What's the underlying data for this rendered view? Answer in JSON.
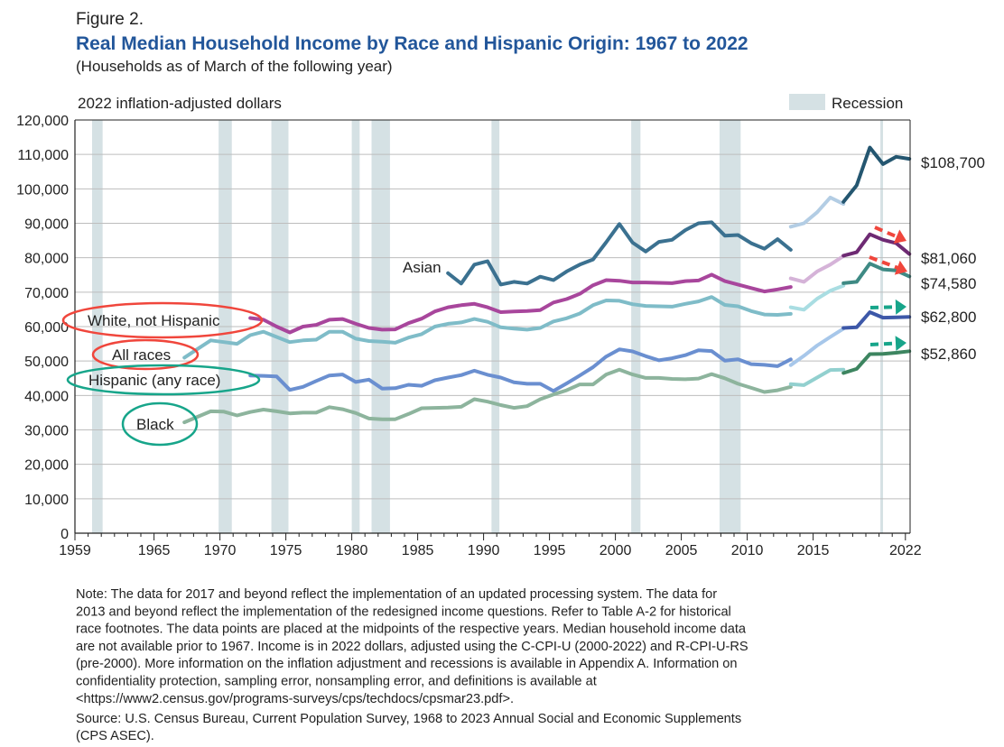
{
  "header": {
    "figure_label": "Figure 2.",
    "title": "Real Median Household Income by Race and Hispanic Origin: 1967 to 2022",
    "subtitle": "(Households as of March of the following year)"
  },
  "chart_data": {
    "type": "line",
    "title": "Real Median Household Income by Race and Hispanic Origin: 1967 to 2022",
    "ylabel": "2022 inflation-adjusted dollars",
    "xlabel": "",
    "ylim": [
      0,
      120000
    ],
    "xlim": [
      1959,
      2022
    ],
    "grid": true,
    "y_ticks": [
      "0",
      "10,000",
      "20,000",
      "30,000",
      "40,000",
      "50,000",
      "60,000",
      "70,000",
      "80,000",
      "90,000",
      "100,000",
      "110,000",
      "120,000"
    ],
    "x_ticks": [
      {
        "value": 1959,
        "label": "1959"
      },
      {
        "value": 1965,
        "label": "1965"
      },
      {
        "value": 1970,
        "label": "1970"
      },
      {
        "value": 1975,
        "label": "1975"
      },
      {
        "value": 1980,
        "label": "1980"
      },
      {
        "value": 1985,
        "label": "1985"
      },
      {
        "value": 1990,
        "label": "1990"
      },
      {
        "value": 1995,
        "label": "1995"
      },
      {
        "value": 2000,
        "label": "2000"
      },
      {
        "value": 2005,
        "label": "2005"
      },
      {
        "value": 2010,
        "label": "2010"
      },
      {
        "value": 2015,
        "label": "2015"
      },
      {
        "value": 2022,
        "label": "2022"
      }
    ],
    "legend": {
      "label": "Recession",
      "placement": "top-right",
      "color": "#d5e1e4"
    },
    "recessions": [
      [
        1960.3,
        1961.1
      ],
      [
        1969.9,
        1970.9
      ],
      [
        1973.9,
        1975.2
      ],
      [
        1980.0,
        1980.6
      ],
      [
        1981.5,
        1982.9
      ],
      [
        1990.6,
        1991.2
      ],
      [
        2001.2,
        2001.9
      ],
      [
        2007.9,
        2009.5
      ],
      [
        2020.1,
        2020.3
      ]
    ],
    "series": [
      {
        "name": "Asian",
        "label": "Asian",
        "end_label": "$108,700",
        "end_value": 108700,
        "colors": [
          "#3b7190",
          "#b3cde4",
          "#245670"
        ],
        "segments": [
          {
            "x": [
              1987,
              1988,
              1989,
              1990,
              1991,
              1992,
              1993,
              1994,
              1995,
              1996,
              1997,
              1998,
              1999,
              2000,
              2001,
              2002,
              2003,
              2004,
              2005,
              2006,
              2007,
              2008,
              2009,
              2010,
              2011,
              2012,
              2013
            ],
            "y": [
              75500,
              72500,
              78000,
              79000,
              72200,
              73000,
              72500,
              74500,
              73500,
              76000,
              78000,
              79500,
              84500,
              89800,
              84400,
              81800,
              84600,
              85200,
              88000,
              90000,
              90300,
              86400,
              86600,
              84200,
              82600,
              85400,
              82300
            ]
          },
          {
            "x": [
              2013,
              2014,
              2015,
              2016,
              2017
            ],
            "y": [
              89000,
              90000,
              93200,
              97500,
              95600
            ]
          },
          {
            "x": [
              2017,
              2018,
              2019,
              2020,
              2021,
              2022
            ],
            "y": [
              96200,
              101000,
              112000,
              107200,
              109300,
              108700
            ]
          }
        ]
      },
      {
        "name": "White, not Hispanic",
        "label": "White, not Hispanic",
        "end_label": "$81,060",
        "end_value": 81060,
        "colors": [
          "#a8469c",
          "#d5b3d8",
          "#6e2a73"
        ],
        "segments": [
          {
            "x": [
              1972,
              1973,
              1974,
              1975,
              1976,
              1977,
              1978,
              1979,
              1980,
              1981,
              1982,
              1983,
              1984,
              1985,
              1986,
              1987,
              1988,
              1989,
              1990,
              1991,
              1992,
              1993,
              1994,
              1995,
              1996,
              1997,
              1998,
              1999,
              2000,
              2001,
              2002,
              2003,
              2004,
              2005,
              2006,
              2007,
              2008,
              2009,
              2010,
              2011,
              2012,
              2013
            ],
            "y": [
              62500,
              62000,
              60000,
              58300,
              60000,
              60500,
              62000,
              62200,
              60800,
              59600,
              59100,
              59200,
              61000,
              62300,
              64400,
              65600,
              66200,
              66600,
              65600,
              64200,
              64400,
              64500,
              64800,
              67000,
              68000,
              69500,
              72000,
              73500,
              73300,
              72800,
              72800,
              72700,
              72600,
              73200,
              73400,
              75100,
              73200,
              72200,
              71200,
              70200,
              70800,
              71500
            ]
          },
          {
            "x": [
              2013,
              2014,
              2015,
              2016,
              2017
            ],
            "y": [
              74000,
              73000,
              76000,
              78000,
              80500
            ]
          },
          {
            "x": [
              2017,
              2018,
              2019,
              2020,
              2021,
              2022
            ],
            "y": [
              80600,
              81600,
              86800,
              85200,
              84200,
              81060
            ]
          }
        ]
      },
      {
        "name": "All races",
        "label": "All races",
        "end_label": "$74,580",
        "end_value": 74580,
        "colors": [
          "#7fbcc8",
          "#a9dde2",
          "#3e8a84"
        ],
        "segments": [
          {
            "x": [
              1967,
              1968,
              1969,
              1970,
              1971,
              1972,
              1973,
              1974,
              1975,
              1976,
              1977,
              1978,
              1979,
              1980,
              1981,
              1982,
              1983,
              1984,
              1985,
              1986,
              1987,
              1988,
              1989,
              1990,
              1991,
              1992,
              1993,
              1994,
              1995,
              1996,
              1997,
              1998,
              1999,
              2000,
              2001,
              2002,
              2003,
              2004,
              2005,
              2006,
              2007,
              2008,
              2009,
              2010,
              2011,
              2012,
              2013
            ],
            "y": [
              51000,
              53500,
              56000,
              55500,
              55000,
              57500,
              58500,
              57000,
              55500,
              56000,
              56200,
              58500,
              58500,
              56500,
              55800,
              55600,
              55300,
              56800,
              57800,
              60000,
              60800,
              61200,
              62200,
              61400,
              59800,
              59400,
              59100,
              59600,
              61500,
              62400,
              63800,
              66200,
              67600,
              67500,
              66500,
              66000,
              65900,
              65800,
              66600,
              67300,
              68600,
              66300,
              65900,
              64500,
              63500,
              63400,
              63700
            ]
          },
          {
            "x": [
              2013,
              2014,
              2015,
              2016,
              2017
            ],
            "y": [
              65600,
              64900,
              68100,
              70400,
              71900
            ]
          },
          {
            "x": [
              2017,
              2018,
              2019,
              2020,
              2021,
              2022
            ],
            "y": [
              72600,
              73000,
              78300,
              76600,
              76300,
              74580
            ]
          }
        ]
      },
      {
        "name": "Hispanic (any race)",
        "label": "Hispanic (any race)",
        "end_label": "$62,800",
        "end_value": 62800,
        "colors": [
          "#6a8fd0",
          "#a7c7ea",
          "#3d58a8"
        ],
        "segments": [
          {
            "x": [
              1972,
              1973,
              1974,
              1975,
              1976,
              1977,
              1978,
              1979,
              1980,
              1981,
              1982,
              1983,
              1984,
              1985,
              1986,
              1987,
              1988,
              1989,
              1990,
              1991,
              1992,
              1993,
              1994,
              1995,
              1996,
              1997,
              1998,
              1999,
              2000,
              2001,
              2002,
              2003,
              2004,
              2005,
              2006,
              2007,
              2008,
              2009,
              2010,
              2011,
              2012,
              2013
            ],
            "y": [
              45800,
              45700,
              45500,
              41600,
              42500,
              44200,
              45800,
              46100,
              43900,
              44600,
              42000,
              42100,
              43100,
              42800,
              44400,
              45200,
              45900,
              47200,
              46000,
              45200,
              43800,
              43400,
              43400,
              41300,
              43500,
              45800,
              48200,
              51300,
              53400,
              52800,
              51400,
              50200,
              50800,
              51700,
              53100,
              52900,
              50100,
              50500,
              49100,
              48900,
              48500,
              50500
            ]
          },
          {
            "x": [
              2013,
              2014,
              2015,
              2016,
              2017
            ],
            "y": [
              48800,
              51500,
              54500,
              57000,
              59400
            ]
          },
          {
            "x": [
              2017,
              2018,
              2019,
              2020,
              2021,
              2022
            ],
            "y": [
              59600,
              59800,
              64200,
              62600,
              62700,
              62800
            ]
          }
        ]
      },
      {
        "name": "Black",
        "label": "Black",
        "end_label": "$52,860",
        "end_value": 52860,
        "colors": [
          "#8db49d",
          "#92d0cf",
          "#3d8560"
        ],
        "segments": [
          {
            "x": [
              1967,
              1968,
              1969,
              1970,
              1971,
              1972,
              1973,
              1974,
              1975,
              1976,
              1977,
              1978,
              1979,
              1980,
              1981,
              1982,
              1983,
              1984,
              1985,
              1986,
              1987,
              1988,
              1989,
              1990,
              1991,
              1992,
              1993,
              1994,
              1995,
              1996,
              1997,
              1998,
              1999,
              2000,
              2001,
              2002,
              2003,
              2004,
              2005,
              2006,
              2007,
              2008,
              2009,
              2010,
              2011,
              2012,
              2013
            ],
            "y": [
              32200,
              33800,
              35400,
              35300,
              34200,
              35200,
              35900,
              35400,
              34800,
              35000,
              35000,
              36600,
              36000,
              34900,
              33300,
              33100,
              33100,
              34600,
              36300,
              36400,
              36500,
              36700,
              38900,
              38200,
              37200,
              36400,
              36900,
              38900,
              40300,
              41500,
              43200,
              43200,
              46100,
              47500,
              46100,
              45100,
              45100,
              44800,
              44700,
              44900,
              46200,
              45000,
              43400,
              42200,
              41000,
              41500,
              42500
            ]
          },
          {
            "x": [
              2013,
              2014,
              2015,
              2016,
              2017
            ],
            "y": [
              43300,
              43000,
              45200,
              47400,
              47500
            ]
          },
          {
            "x": [
              2017,
              2018,
              2019,
              2020,
              2021,
              2022
            ],
            "y": [
              46500,
              47700,
              52000,
              52100,
              52400,
              52860
            ]
          }
        ]
      }
    ],
    "annotations": {
      "down_arrow_color": "#f0463c",
      "flat_arrow_color": "#17a58a"
    }
  },
  "notes": {
    "note_lines": [
      "Note: The data for 2017 and beyond reflect the implementation of an updated processing system. The data for",
      "2013 and beyond reflect the implementation of the redesigned income questions. Refer to Table A-2 for historical",
      "race footnotes. The data points are placed at the midpoints of the respective years. Median household income data",
      "are not available prior to 1967. Income is in 2022 dollars, adjusted using the C-CPI-U (2000-2022) and R-CPI-U-RS",
      "(pre-2000). More information on the inflation adjustment and recessions is available in Appendix A. Information on",
      "confidentiality protection, sampling error, nonsampling error, and definitions is available at",
      "<https://www2.census.gov/programs-surveys/cps/techdocs/cpsmar23.pdf>."
    ],
    "source_lines": [
      "Source: U.S. Census Bureau, Current Population Survey, 1968 to 2023 Annual Social and Economic Supplements",
      "(CPS ASEC)."
    ]
  }
}
